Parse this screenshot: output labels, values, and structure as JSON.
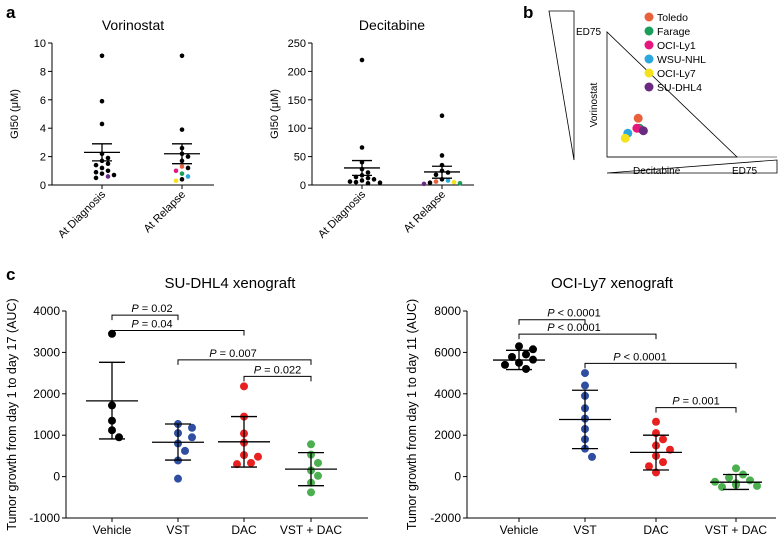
{
  "panel_letters": {
    "a": "a",
    "b": "b",
    "c": "c"
  },
  "chart_data": [
    {
      "id": "a1",
      "type": "scatter",
      "title": "Vorinostat",
      "ylabel": "GI50 (μM)",
      "ylim": [
        0,
        10
      ],
      "yticks": [
        "0",
        "2",
        "4",
        "6",
        "8",
        "10"
      ],
      "categories": [
        "At Diagnosis",
        "At Relapse"
      ],
      "groups": [
        {
          "name": "At Diagnosis",
          "mean": 2.3,
          "err_hi": 2.9,
          "err_lo": 1.7,
          "points": [
            {
              "v": 9.1,
              "c": "#000000"
            },
            {
              "v": 5.9,
              "c": "#000000"
            },
            {
              "v": 4.3,
              "c": "#000000"
            },
            {
              "v": 2.2,
              "c": "#000000"
            },
            {
              "v": 1.9,
              "c": "#000000"
            },
            {
              "v": 1.7,
              "c": "#000000"
            },
            {
              "v": 1.5,
              "c": "#000000"
            },
            {
              "v": 1.4,
              "c": "#000000"
            },
            {
              "v": 1.2,
              "c": "#000000"
            },
            {
              "v": 1.0,
              "c": "#000000"
            },
            {
              "v": 0.9,
              "c": "#000000"
            },
            {
              "v": 0.8,
              "c": "#000000"
            },
            {
              "v": 0.7,
              "c": "#000000"
            },
            {
              "v": 0.6,
              "c": "#6a2a82"
            },
            {
              "v": 0.5,
              "c": "#000000"
            }
          ]
        },
        {
          "name": "At Relapse",
          "mean": 2.2,
          "err_hi": 2.9,
          "err_lo": 1.5,
          "points": [
            {
              "v": 9.1,
              "c": "#000000"
            },
            {
              "v": 3.9,
              "c": "#000000"
            },
            {
              "v": 2.6,
              "c": "#000000"
            },
            {
              "v": 2.2,
              "c": "#000000"
            },
            {
              "v": 2.0,
              "c": "#000000"
            },
            {
              "v": 1.7,
              "c": "#000000"
            },
            {
              "v": 1.3,
              "c": "#e8613c"
            },
            {
              "v": 1.2,
              "c": "#000000"
            },
            {
              "v": 1.0,
              "c": "#e5177f"
            },
            {
              "v": 0.8,
              "c": "#1a9d5b"
            },
            {
              "v": 0.6,
              "c": "#2ba6de"
            },
            {
              "v": 0.4,
              "c": "#000000"
            },
            {
              "v": 0.3,
              "c": "#f4e21a"
            }
          ]
        }
      ]
    },
    {
      "id": "a2",
      "type": "scatter",
      "title": "Decitabine",
      "ylabel": "GI50 (μM)",
      "ylim": [
        0,
        250
      ],
      "yticks": [
        "0",
        "50",
        "100",
        "150",
        "200",
        "250"
      ],
      "categories": [
        "At Diagnosis",
        "At Relapse"
      ],
      "groups": [
        {
          "name": "At Diagnosis",
          "mean": 30,
          "err_hi": 43,
          "err_lo": 17,
          "points": [
            {
              "v": 220,
              "c": "#000000"
            },
            {
              "v": 66,
              "c": "#000000"
            },
            {
              "v": 40,
              "c": "#000000"
            },
            {
              "v": 28,
              "c": "#000000"
            },
            {
              "v": 22,
              "c": "#000000"
            },
            {
              "v": 17,
              "c": "#000000"
            },
            {
              "v": 14,
              "c": "#000000"
            },
            {
              "v": 12,
              "c": "#000000"
            },
            {
              "v": 10,
              "c": "#000000"
            },
            {
              "v": 8,
              "c": "#000000"
            },
            {
              "v": 6,
              "c": "#000000"
            },
            {
              "v": 5,
              "c": "#000000"
            },
            {
              "v": 4,
              "c": "#000000"
            },
            {
              "v": 3,
              "c": "#000000"
            }
          ]
        },
        {
          "name": "At Relapse",
          "mean": 23,
          "err_hi": 33,
          "err_lo": 12,
          "points": [
            {
              "v": 122,
              "c": "#000000"
            },
            {
              "v": 52,
              "c": "#000000"
            },
            {
              "v": 35,
              "c": "#000000"
            },
            {
              "v": 25,
              "c": "#000000"
            },
            {
              "v": 22,
              "c": "#000000"
            },
            {
              "v": 18,
              "c": "#000000"
            },
            {
              "v": 10,
              "c": "#000000"
            },
            {
              "v": 8,
              "c": "#2ba6de"
            },
            {
              "v": 6,
              "c": "#e8613c"
            },
            {
              "v": 5,
              "c": "#f4e21a"
            },
            {
              "v": 4,
              "c": "#000000"
            },
            {
              "v": 3,
              "c": "#1a9d5b"
            },
            {
              "v": 2,
              "c": "#6a2a82"
            }
          ]
        }
      ]
    },
    {
      "id": "b",
      "type": "scatter",
      "title": "",
      "xlabel": "Decitabine",
      "ylabel": "Vorinostat",
      "ed_label": "ED75",
      "legend": [
        {
          "name": "Toledo",
          "color": "#e8613c"
        },
        {
          "name": "Farage",
          "color": "#1a9d5b"
        },
        {
          "name": "OCI-Ly1",
          "color": "#e5177f"
        },
        {
          "name": "WSU-NHL",
          "color": "#2ba6de"
        },
        {
          "name": "OCI-Ly7",
          "color": "#f4e21a"
        },
        {
          "name": "SU-DHL4",
          "color": "#6a2a82"
        }
      ],
      "xlim": [
        0,
        1
      ],
      "ylim": [
        0,
        1
      ],
      "points": [
        {
          "name": "Toledo",
          "x": 0.24,
          "y": 0.31
        },
        {
          "name": "Farage",
          "x": 0.25,
          "y": 0.23
        },
        {
          "name": "OCI-Ly1",
          "x": 0.23,
          "y": 0.23
        },
        {
          "name": "WSU-NHL",
          "x": 0.16,
          "y": 0.19
        },
        {
          "name": "OCI-Ly7",
          "x": 0.14,
          "y": 0.15
        },
        {
          "name": "SU-DHL4",
          "x": 0.28,
          "y": 0.21
        }
      ]
    },
    {
      "id": "c1",
      "type": "scatter",
      "title": "SU-DHL4 xenograft",
      "ylabel": "Tumor growth from day 1 to day 17 (AUC)",
      "ylim": [
        -1000,
        4000
      ],
      "yticks": [
        "-1000",
        "0",
        "1000",
        "2000",
        "3000",
        "4000"
      ],
      "categories": [
        "Vehicle",
        "VST",
        "DAC",
        "VST + DAC"
      ],
      "groups": [
        {
          "name": "Vehicle",
          "color": "#000000",
          "mean": 1830,
          "err_hi": 2760,
          "err_lo": 910,
          "points": [
            3450,
            1720,
            1350,
            1120,
            950
          ]
        },
        {
          "name": "VST",
          "color": "#2f4ea1",
          "mean": 830,
          "err_hi": 1270,
          "err_lo": 400,
          "points": [
            1270,
            1180,
            1050,
            950,
            800,
            620,
            390,
            -50
          ]
        },
        {
          "name": "DAC",
          "color": "#e8201f",
          "mean": 840,
          "err_hi": 1450,
          "err_lo": 230,
          "points": [
            2180,
            1450,
            1040,
            820,
            520,
            480,
            330,
            300
          ]
        },
        {
          "name": "VST + DAC",
          "color": "#4caf50",
          "mean": 180,
          "err_hi": 580,
          "err_lo": -220,
          "points": [
            780,
            530,
            330,
            150,
            20,
            -150,
            -380
          ]
        }
      ],
      "comparisons": [
        {
          "label": "P = 0.02",
          "from": 0,
          "to": 1,
          "y": 3900
        },
        {
          "label": "P = 0.04",
          "from": 0,
          "to": 2,
          "y": 3530
        },
        {
          "label": "P = 0.007",
          "from": 1,
          "to": 3,
          "y": 2820
        },
        {
          "label": "P = 0.022",
          "from": 2,
          "to": 3,
          "y": 2420
        }
      ]
    },
    {
      "id": "c2",
      "type": "scatter",
      "title": "OCI-Ly7 xenograft",
      "ylabel": "Tumor growth from day 1 to day 11 (AUC)",
      "ylim": [
        -2000,
        8000
      ],
      "yticks": [
        "-2000",
        "0",
        "2000",
        "4000",
        "6000",
        "8000"
      ],
      "categories": [
        "Vehicle",
        "VST",
        "DAC",
        "VST + DAC"
      ],
      "groups": [
        {
          "name": "Vehicle",
          "color": "#000000",
          "mean": 5630,
          "err_hi": 6100,
          "err_lo": 5170,
          "points": [
            6300,
            6150,
            5900,
            5780,
            5650,
            5500,
            5400,
            5200
          ]
        },
        {
          "name": "VST",
          "color": "#2f4ea1",
          "mean": 2760,
          "err_hi": 4170,
          "err_lo": 1350,
          "points": [
            5000,
            4400,
            3900,
            3300,
            2800,
            2300,
            1800,
            1350,
            950
          ]
        },
        {
          "name": "DAC",
          "color": "#e8201f",
          "mean": 1170,
          "err_hi": 2000,
          "err_lo": 320,
          "points": [
            2650,
            2100,
            1800,
            1500,
            1300,
            1000,
            700,
            500,
            200
          ]
        },
        {
          "name": "VST + DAC",
          "color": "#4caf50",
          "mean": -270,
          "err_hi": 100,
          "err_lo": -620,
          "points": [
            400,
            100,
            -50,
            -180,
            -250,
            -320,
            -400,
            -450,
            -500
          ]
        }
      ],
      "comparisons": [
        {
          "label": "P < 0.0001",
          "from": 0,
          "to": 1,
          "y": 7580
        },
        {
          "label": "P < 0.0001",
          "from": 0,
          "to": 2,
          "y": 6880
        },
        {
          "label": "P < 0.0001",
          "from": 1,
          "to": 3,
          "y": 5470
        },
        {
          "label": "P = 0.001",
          "from": 2,
          "to": 3,
          "y": 3330
        }
      ]
    }
  ]
}
